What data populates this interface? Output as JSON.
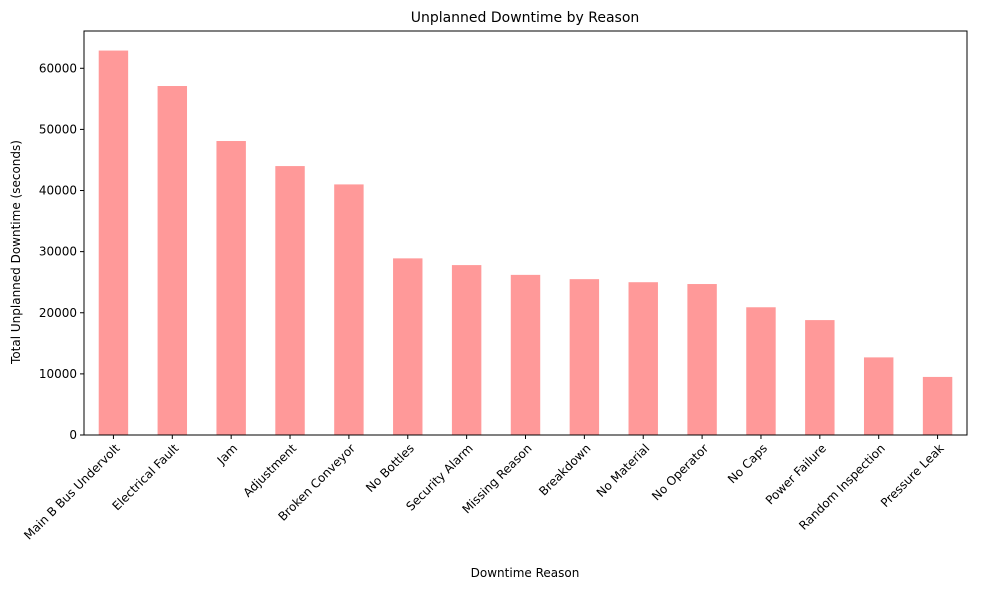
{
  "chart_data": {
    "type": "bar",
    "title": "Unplanned Downtime by Reason",
    "xlabel": "Downtime Reason",
    "ylabel": "Total Unplanned Downtime (seconds)",
    "ylim": [
      0,
      66100
    ],
    "yticks": [
      0,
      10000,
      20000,
      30000,
      40000,
      50000,
      60000
    ],
    "ytick_labels": [
      "0",
      "10000",
      "20000",
      "30000",
      "40000",
      "50000",
      "60000"
    ],
    "categories": [
      "Main B Bus Undervolt",
      "Electrical Fault",
      "Jam",
      "Adjustment",
      "Broken Conveyor",
      "No Bottles",
      "Security Alarm",
      "Missing Reason",
      "Breakdown",
      "No Material",
      "No Operator",
      "No Caps",
      "Power Failure",
      "Random Inspection",
      "Pressure Leak"
    ],
    "values": [
      62900,
      57100,
      48100,
      44000,
      41000,
      28900,
      27800,
      26200,
      25500,
      25000,
      24700,
      20900,
      18800,
      12700,
      9500
    ],
    "bar_color": "#ff9999",
    "grid": false,
    "legend": "none"
  }
}
